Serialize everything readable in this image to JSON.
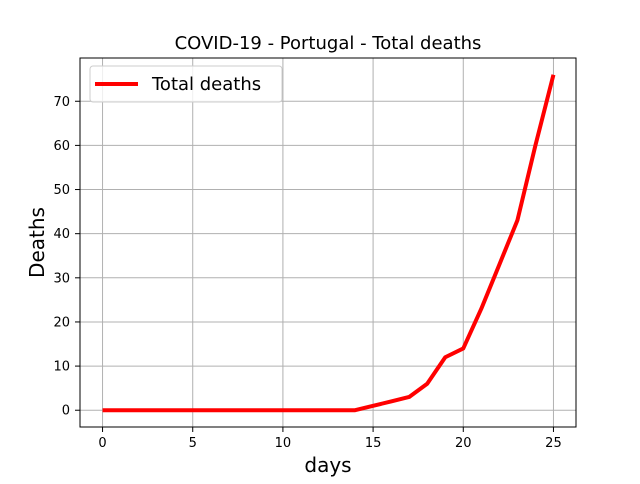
{
  "chart_data": {
    "type": "line",
    "title": "COVID-19 - Portugal - Total deaths",
    "xlabel": "days",
    "ylabel": "Deaths",
    "xlim": [
      -1.25,
      26.25
    ],
    "ylim": [
      -3.8,
      79.8
    ],
    "xticks": [
      0,
      5,
      10,
      15,
      20,
      25
    ],
    "yticks": [
      0,
      10,
      20,
      30,
      40,
      50,
      60,
      70
    ],
    "grid": true,
    "legend_position": "top-left",
    "series": [
      {
        "name": "Total deaths",
        "color": "#ff0000",
        "x": [
          0,
          1,
          2,
          3,
          4,
          5,
          6,
          7,
          8,
          9,
          10,
          11,
          12,
          13,
          14,
          15,
          16,
          17,
          18,
          19,
          20,
          21,
          22,
          23,
          24,
          25
        ],
        "y": [
          0,
          0,
          0,
          0,
          0,
          0,
          0,
          0,
          0,
          0,
          0,
          0,
          0,
          0,
          0,
          1,
          2,
          3,
          6,
          12,
          14,
          23,
          33,
          43,
          60,
          76
        ]
      }
    ]
  }
}
